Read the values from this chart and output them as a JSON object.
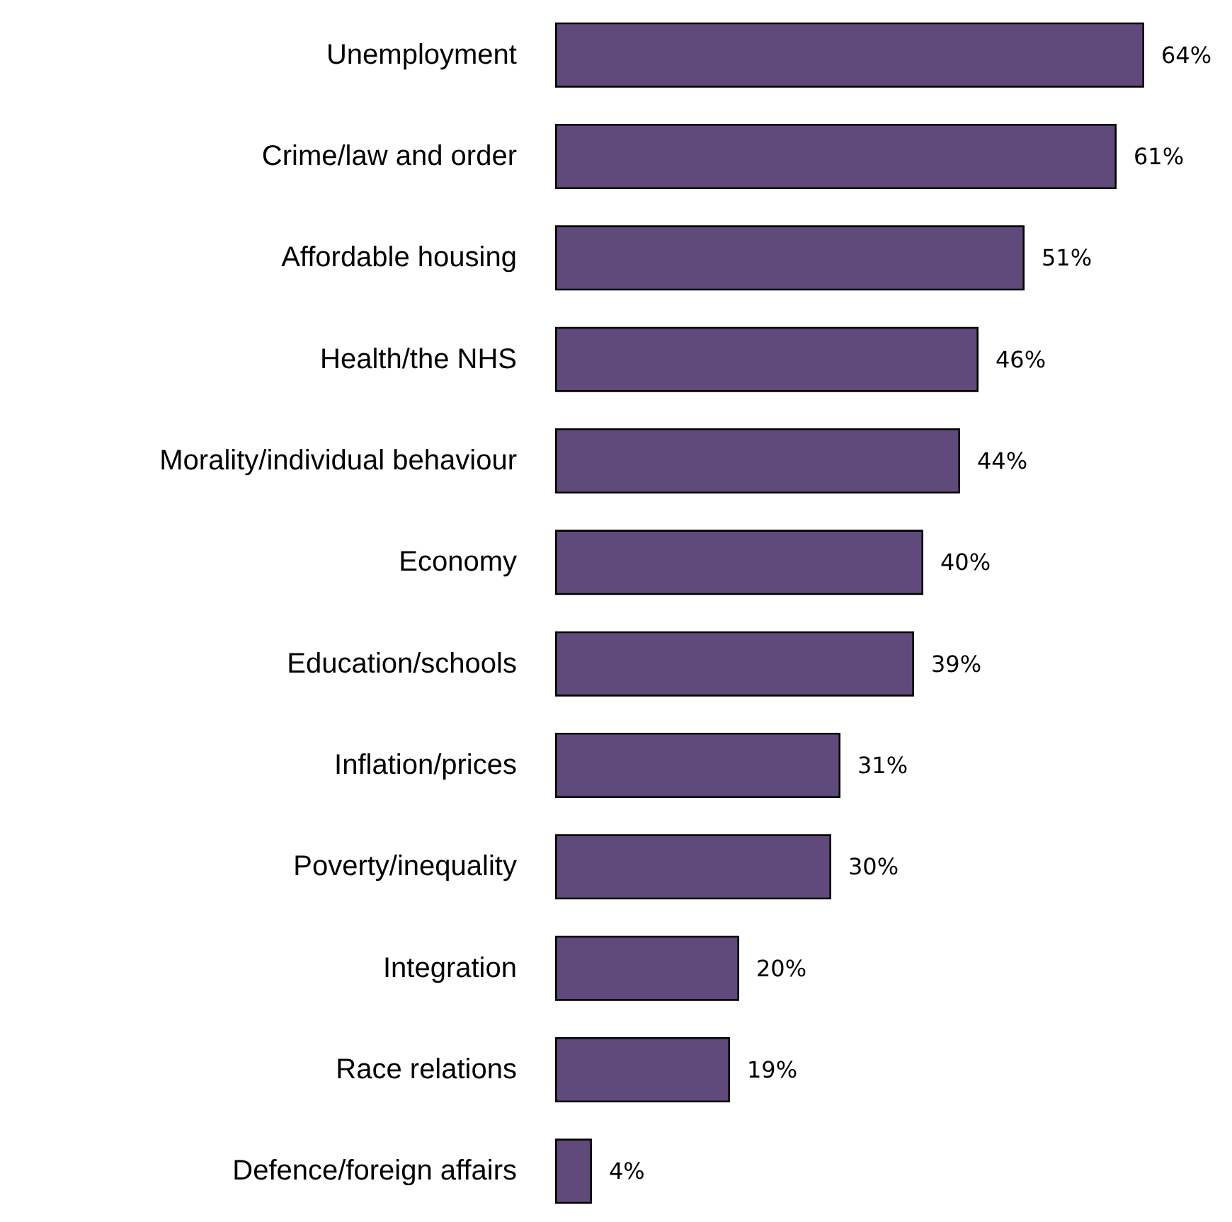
{
  "chart_data": {
    "type": "bar",
    "orientation": "horizontal",
    "categories": [
      "Unemployment",
      "Crime/law and order",
      "Affordable housing",
      "Health/the NHS",
      "Morality/individual behaviour",
      "Economy",
      "Education/schools",
      "Inflation/prices",
      "Poverty/inequality",
      "Integration",
      "Race relations",
      "Defence/foreign affairs"
    ],
    "values": [
      64,
      61,
      51,
      46,
      44,
      40,
      39,
      31,
      30,
      20,
      19,
      4
    ],
    "value_labels": [
      "64%",
      "61%",
      "51%",
      "46%",
      "44%",
      "40%",
      "39%",
      "31%",
      "30%",
      "20%",
      "19%",
      "4%"
    ],
    "color": "#604a7b"
  }
}
